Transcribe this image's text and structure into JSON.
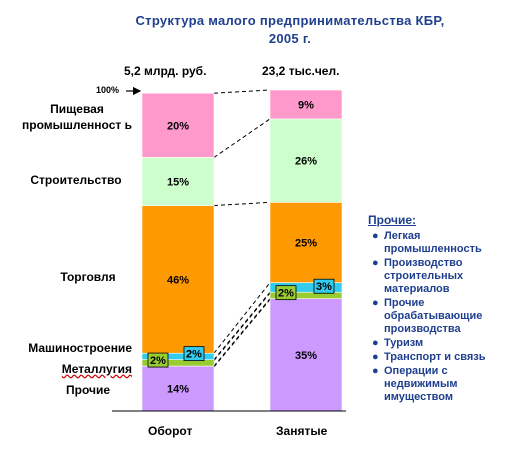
{
  "title_line1": "Структура малого предпринимательства КБР,",
  "title_line2": "2005 г.",
  "totals": {
    "left": "5,2 млрд. руб.",
    "right": "23,2 тыс.чел."
  },
  "hundred_label": "100%",
  "category_labels": {
    "food": "Пищевая промышленност ь",
    "construction": "Строительство",
    "trade": "Торговля",
    "machinery": "Машиностроение",
    "metallurgy": "Металлугия",
    "other": "Прочие"
  },
  "legend": {
    "title": "Прочие:",
    "items": [
      "Легкая промышленность",
      "Производство строительных материалов",
      "Прочие обрабатывающие производства",
      "Туризм",
      "Транспорт и связь",
      "Операции с недвижимым имуществом"
    ]
  },
  "colors": {
    "food": "#ff99cc",
    "construction": "#ccffcc",
    "trade": "#ff9900",
    "machinery": "#33ccee",
    "metallurgy": "#99cc33",
    "other": "#cc99ff",
    "title": "#1f3f8f"
  },
  "chart_data": {
    "type": "bar",
    "stacked": true,
    "percent": true,
    "categories": [
      "Оборот",
      "Занятые"
    ],
    "series": [
      {
        "name": "Прочие",
        "values": [
          14,
          35
        ]
      },
      {
        "name": "Металлугия",
        "values": [
          2,
          2
        ]
      },
      {
        "name": "Машиностроение",
        "values": [
          2,
          3
        ]
      },
      {
        "name": "Торговля",
        "values": [
          46,
          25
        ]
      },
      {
        "name": "Строительство",
        "values": [
          15,
          26
        ]
      },
      {
        "name": "Пищевая промышленность",
        "values": [
          20,
          9
        ]
      }
    ],
    "labels": [
      [
        "14%",
        "35%"
      ],
      [
        "2%",
        "2%"
      ],
      [
        "2%",
        "3%"
      ],
      [
        "46%",
        "25%"
      ],
      [
        "15%",
        "26%"
      ],
      [
        "20%",
        "9%"
      ]
    ],
    "ylim": [
      0,
      100
    ]
  }
}
